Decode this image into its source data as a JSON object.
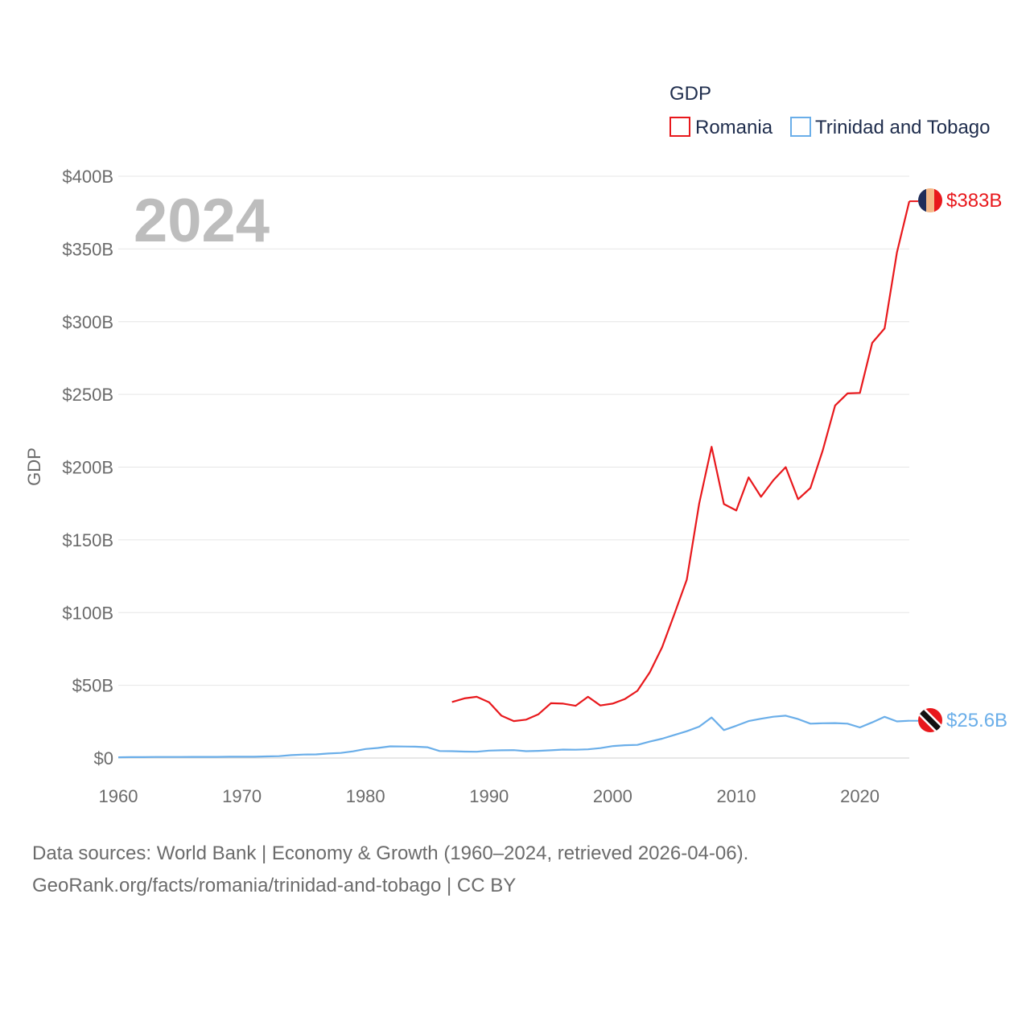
{
  "chart_data": {
    "type": "line",
    "title": "GDP",
    "year_label": "2024",
    "ylabel": "GDP",
    "xlabel": "",
    "xlim": [
      1960,
      2024
    ],
    "ylim": [
      0,
      400
    ],
    "y_unit": "billions USD",
    "x_ticks": [
      "1960",
      "1970",
      "1980",
      "1990",
      "2000",
      "2010",
      "2020"
    ],
    "y_ticks": [
      "$0",
      "$50B",
      "$100B",
      "$150B",
      "$200B",
      "$250B",
      "$300B",
      "$350B",
      "$400B"
    ],
    "grid": true,
    "legend_position": "top-right",
    "series": [
      {
        "name": "Romania",
        "color": "#e8181c",
        "end_label": "$383B",
        "flag_icon": "romania-flag-icon",
        "points": [
          [
            1987,
            38.5
          ],
          [
            1988,
            41.0
          ],
          [
            1989,
            42.1
          ],
          [
            1990,
            38.3
          ],
          [
            1991,
            29.1
          ],
          [
            1992,
            25.4
          ],
          [
            1993,
            26.4
          ],
          [
            1994,
            30.1
          ],
          [
            1995,
            37.7
          ],
          [
            1996,
            37.4
          ],
          [
            1997,
            35.9
          ],
          [
            1998,
            42.1
          ],
          [
            1999,
            36.1
          ],
          [
            2000,
            37.4
          ],
          [
            2001,
            40.6
          ],
          [
            2002,
            46.2
          ],
          [
            2003,
            58.9
          ],
          [
            2004,
            76.1
          ],
          [
            2005,
            99.2
          ],
          [
            2006,
            122.7
          ],
          [
            2007,
            175.0
          ],
          [
            2008,
            214.0
          ],
          [
            2009,
            174.6
          ],
          [
            2010,
            170.2
          ],
          [
            2011,
            193.0
          ],
          [
            2012,
            179.6
          ],
          [
            2013,
            190.9
          ],
          [
            2014,
            200.0
          ],
          [
            2015,
            177.9
          ],
          [
            2016,
            185.6
          ],
          [
            2017,
            211.6
          ],
          [
            2018,
            242.4
          ],
          [
            2019,
            250.7
          ],
          [
            2020,
            251.0
          ],
          [
            2021,
            285.4
          ],
          [
            2022,
            295.4
          ],
          [
            2023,
            347.5
          ],
          [
            2024,
            382.8
          ]
        ]
      },
      {
        "name": "Trinidad and Tobago",
        "color": "#6aaee9",
        "end_label": "$25.6B",
        "flag_icon": "trinidad-and-tobago-flag-icon",
        "points": [
          [
            1960,
            0.5
          ],
          [
            1961,
            0.6
          ],
          [
            1962,
            0.6
          ],
          [
            1963,
            0.7
          ],
          [
            1964,
            0.7
          ],
          [
            1965,
            0.7
          ],
          [
            1966,
            0.8
          ],
          [
            1967,
            0.8
          ],
          [
            1968,
            0.8
          ],
          [
            1969,
            0.9
          ],
          [
            1970,
            0.9
          ],
          [
            1971,
            0.9
          ],
          [
            1972,
            1.1
          ],
          [
            1973,
            1.3
          ],
          [
            1974,
            2.0
          ],
          [
            1975,
            2.4
          ],
          [
            1976,
            2.5
          ],
          [
            1977,
            3.1
          ],
          [
            1978,
            3.5
          ],
          [
            1979,
            4.6
          ],
          [
            1980,
            6.2
          ],
          [
            1981,
            6.9
          ],
          [
            1982,
            8.0
          ],
          [
            1983,
            7.9
          ],
          [
            1984,
            7.8
          ],
          [
            1985,
            7.4
          ],
          [
            1986,
            4.8
          ],
          [
            1987,
            4.7
          ],
          [
            1988,
            4.4
          ],
          [
            1989,
            4.3
          ],
          [
            1990,
            5.1
          ],
          [
            1991,
            5.3
          ],
          [
            1992,
            5.4
          ],
          [
            1993,
            4.7
          ],
          [
            1994,
            4.9
          ],
          [
            1995,
            5.3
          ],
          [
            1996,
            5.8
          ],
          [
            1997,
            5.7
          ],
          [
            1998,
            6.0
          ],
          [
            1999,
            6.8
          ],
          [
            2000,
            8.2
          ],
          [
            2001,
            8.8
          ],
          [
            2002,
            9.0
          ],
          [
            2003,
            11.3
          ],
          [
            2004,
            13.3
          ],
          [
            2005,
            15.9
          ],
          [
            2006,
            18.4
          ],
          [
            2007,
            21.6
          ],
          [
            2008,
            27.9
          ],
          [
            2009,
            19.2
          ],
          [
            2010,
            22.2
          ],
          [
            2011,
            25.4
          ],
          [
            2012,
            27.0
          ],
          [
            2013,
            28.4
          ],
          [
            2014,
            29.1
          ],
          [
            2015,
            26.8
          ],
          [
            2016,
            23.6
          ],
          [
            2017,
            23.9
          ],
          [
            2018,
            24.0
          ],
          [
            2019,
            23.6
          ],
          [
            2020,
            21.0
          ],
          [
            2021,
            24.5
          ],
          [
            2022,
            28.3
          ],
          [
            2023,
            25.2
          ],
          [
            2024,
            25.6
          ]
        ]
      }
    ]
  },
  "source": {
    "line1": "Data sources: World Bank | Economy & Growth (1960–2024, retrieved 2026-04-06).",
    "line2": "GeoRank.org/facts/romania/trinidad-and-tobago | CC BY"
  }
}
